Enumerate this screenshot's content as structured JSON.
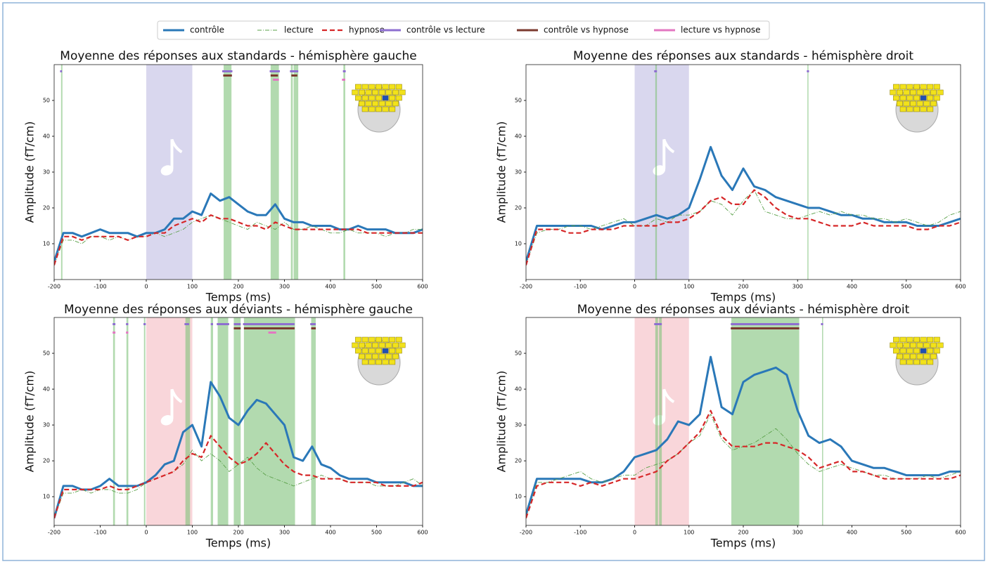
{
  "legend": [
    {
      "name": "contrôle",
      "color": "#2a78b8",
      "style": "solid"
    },
    {
      "name": "lecture",
      "color": "#5aa049",
      "style": "dashdot"
    },
    {
      "name": "hypnose",
      "color": "#d62728",
      "style": "dashed"
    },
    {
      "name": "contrôle vs lecture",
      "color": "#8e6fd0",
      "style": "bar"
    },
    {
      "name": "contrôle vs hypnose",
      "color": "#7b3a2f",
      "style": "bar"
    },
    {
      "name": "lecture vs hypnose",
      "color": "#e377c2",
      "style": "bar"
    }
  ],
  "chart_data": [
    {
      "type": "line",
      "title": "Moyenne des réponses aux standards - hémisphère gauche",
      "x_label": "Temps (ms)",
      "y_label": "Amplitude (fT/cm)",
      "xlim": [
        -200,
        600
      ],
      "ylim": [
        0,
        60
      ],
      "xticks": [
        -200,
        -100,
        0,
        100,
        200,
        300,
        400,
        500,
        600
      ],
      "yticks": [
        10,
        20,
        30,
        40,
        50
      ],
      "highlight": [
        0,
        100
      ],
      "highlight_color": "#d9d7ee",
      "x": [
        -200,
        -180,
        -160,
        -140,
        -120,
        -100,
        -80,
        -60,
        -40,
        -20,
        0,
        20,
        40,
        60,
        80,
        100,
        120,
        140,
        160,
        180,
        200,
        220,
        240,
        260,
        280,
        300,
        320,
        340,
        360,
        380,
        400,
        420,
        440,
        460,
        480,
        500,
        520,
        540,
        560,
        580,
        600
      ],
      "series": [
        {
          "name": "contrôle",
          "color": "#2a78b8",
          "values": [
            5,
            13,
            13,
            12,
            13,
            14,
            13,
            13,
            13,
            12,
            13,
            13,
            14,
            17,
            17,
            19,
            18,
            24,
            22,
            23,
            21,
            19,
            18,
            18,
            21,
            17,
            16,
            16,
            15,
            15,
            15,
            14,
            14,
            15,
            14,
            14,
            14,
            13,
            13,
            13,
            14
          ]
        },
        {
          "name": "lecture",
          "color": "#5aa049",
          "values": [
            4,
            11,
            11,
            10,
            12,
            12,
            11,
            12,
            11,
            12,
            12,
            13,
            12,
            13,
            14,
            16,
            17,
            18,
            17,
            16,
            15,
            14,
            16,
            15,
            14,
            16,
            14,
            14,
            15,
            14,
            13,
            13,
            14,
            13,
            13,
            13,
            12,
            13,
            13,
            14,
            14
          ]
        },
        {
          "name": "hypnose",
          "color": "#d62728",
          "values": [
            4,
            12,
            12,
            11,
            12,
            12,
            12,
            12,
            11,
            12,
            12,
            13,
            13,
            15,
            16,
            17,
            16,
            18,
            17,
            17,
            16,
            15,
            15,
            14,
            16,
            15,
            14,
            14,
            14,
            14,
            14,
            14,
            14,
            14,
            13,
            13,
            13,
            13,
            13,
            13,
            13
          ]
        }
      ],
      "significant_intervals": [
        [
          -185,
          -182
        ],
        [
          168,
          185
        ],
        [
          270,
          288
        ],
        [
          314,
          318
        ],
        [
          320,
          330
        ],
        [
          428,
          432
        ]
      ],
      "comparisons": [
        [
          [
            -187,
            -183
          ],
          [
            165,
            187
          ],
          [
            268,
            290
          ],
          [
            312,
            330
          ],
          [
            427,
            433
          ]
        ],
        [
          [
            167,
            186
          ],
          [
            270,
            286
          ],
          [
            315,
            328
          ]
        ],
        [
          [
            275,
            288
          ],
          [
            425,
            432
          ]
        ]
      ]
    },
    {
      "type": "line",
      "title": "Moyenne des réponses aux standards - hémisphère droit",
      "x_label": "Temps (ms)",
      "y_label": "Amplitude (fT/cm)",
      "xlim": [
        -200,
        600
      ],
      "ylim": [
        0,
        60
      ],
      "xticks": [
        -200,
        -100,
        0,
        100,
        200,
        300,
        400,
        500,
        600
      ],
      "yticks": [
        10,
        20,
        30,
        40,
        50
      ],
      "highlight": [
        0,
        100
      ],
      "highlight_color": "#d9d7ee",
      "x": [
        -200,
        -180,
        -160,
        -140,
        -120,
        -100,
        -80,
        -60,
        -40,
        -20,
        0,
        20,
        40,
        60,
        80,
        100,
        120,
        140,
        160,
        180,
        200,
        220,
        240,
        260,
        280,
        300,
        320,
        340,
        360,
        380,
        400,
        420,
        440,
        460,
        480,
        500,
        520,
        540,
        560,
        580,
        600
      ],
      "series": [
        {
          "name": "contrôle",
          "color": "#2a78b8",
          "values": [
            5,
            15,
            15,
            15,
            15,
            15,
            15,
            14,
            15,
            16,
            16,
            17,
            18,
            17,
            18,
            20,
            28,
            37,
            29,
            25,
            31,
            26,
            25,
            23,
            22,
            21,
            20,
            20,
            19,
            18,
            18,
            17,
            17,
            16,
            16,
            16,
            15,
            15,
            15,
            16,
            17
          ]
        },
        {
          "name": "lecture",
          "color": "#5aa049",
          "values": [
            4,
            13,
            14,
            14,
            15,
            15,
            14,
            15,
            16,
            17,
            15,
            15,
            17,
            16,
            18,
            18,
            19,
            22,
            21,
            18,
            22,
            25,
            19,
            18,
            17,
            17,
            18,
            19,
            18,
            19,
            18,
            18,
            17,
            17,
            16,
            17,
            16,
            15,
            16,
            18,
            19
          ]
        },
        {
          "name": "hypnose",
          "color": "#d62728",
          "values": [
            4,
            14,
            14,
            14,
            13,
            13,
            14,
            14,
            14,
            15,
            15,
            15,
            15,
            16,
            16,
            17,
            19,
            22,
            23,
            21,
            21,
            25,
            23,
            20,
            18,
            17,
            17,
            16,
            15,
            15,
            15,
            16,
            15,
            15,
            15,
            15,
            14,
            14,
            15,
            15,
            16
          ]
        }
      ],
      "significant_intervals": [
        [
          38,
          41
        ],
        [
          318,
          320
        ]
      ],
      "comparisons": [
        [
          [
            36,
            41
          ],
          [
            317,
            321
          ]
        ],
        [],
        []
      ]
    },
    {
      "type": "line",
      "title": "Moyenne des réponses aux déviants - hémisphère gauche",
      "x_label": "Temps (ms)",
      "y_label": "Amplitude (fT/cm)",
      "xlim": [
        -200,
        600
      ],
      "ylim": [
        2,
        60
      ],
      "xticks": [
        -200,
        -100,
        0,
        100,
        200,
        300,
        400,
        500,
        600
      ],
      "yticks": [
        10,
        20,
        30,
        40,
        50
      ],
      "highlight": [
        0,
        100
      ],
      "highlight_color": "#f9d6da",
      "x": [
        -200,
        -180,
        -160,
        -140,
        -120,
        -100,
        -80,
        -60,
        -40,
        -20,
        0,
        20,
        40,
        60,
        80,
        100,
        120,
        140,
        160,
        180,
        200,
        220,
        240,
        260,
        280,
        300,
        320,
        340,
        360,
        380,
        400,
        420,
        440,
        460,
        480,
        500,
        520,
        540,
        560,
        580,
        600
      ],
      "series": [
        {
          "name": "contrôle",
          "color": "#2a78b8",
          "values": [
            4,
            13,
            13,
            12,
            12,
            13,
            15,
            13,
            13,
            13,
            14,
            16,
            19,
            20,
            28,
            30,
            24,
            42,
            38,
            32,
            30,
            34,
            37,
            36,
            33,
            30,
            21,
            20,
            24,
            19,
            18,
            16,
            15,
            15,
            15,
            14,
            14,
            14,
            14,
            13,
            13
          ]
        },
        {
          "name": "lecture",
          "color": "#5aa049",
          "values": [
            4,
            11,
            11,
            12,
            11,
            12,
            12,
            11,
            11,
            12,
            14,
            15,
            16,
            17,
            19,
            23,
            20,
            22,
            20,
            17,
            19,
            21,
            18,
            16,
            15,
            14,
            13,
            14,
            15,
            16,
            15,
            15,
            14,
            14,
            14,
            13,
            13,
            13,
            14,
            15,
            13
          ]
        },
        {
          "name": "hypnose",
          "color": "#d62728",
          "values": [
            4,
            12,
            12,
            12,
            12,
            12,
            13,
            12,
            12,
            13,
            14,
            15,
            16,
            17,
            20,
            22,
            21,
            27,
            24,
            21,
            19,
            20,
            22,
            25,
            22,
            19,
            17,
            16,
            16,
            15,
            15,
            15,
            14,
            14,
            14,
            14,
            13,
            13,
            13,
            13,
            14
          ]
        }
      ],
      "significant_intervals": [
        [
          -72,
          -68
        ],
        [
          -43,
          -39
        ],
        [
          -5,
          -2
        ],
        [
          85,
          95
        ],
        [
          140,
          145
        ],
        [
          155,
          178
        ],
        [
          190,
          205
        ],
        [
          212,
          323
        ],
        [
          358,
          368
        ]
      ],
      "comparisons": [
        [
          [
            -73,
            -67
          ],
          [
            -44,
            -39
          ],
          [
            -6,
            -1
          ],
          [
            83,
            93
          ],
          [
            140,
            145
          ],
          [
            153,
            180
          ],
          [
            190,
            205
          ],
          [
            210,
            322
          ],
          [
            356,
            368
          ]
        ],
        [
          [
            190,
            205
          ],
          [
            212,
            322
          ],
          [
            358,
            368
          ]
        ],
        [
          [
            -73,
            -67
          ],
          [
            -44,
            -39
          ],
          [
            265,
            282
          ]
        ]
      ]
    },
    {
      "type": "line",
      "title": "Moyenne des réponses aux déviants - hémisphère droit",
      "x_label": "Temps (ms)",
      "y_label": "Amplitude (fT/cm)",
      "xlim": [
        -200,
        600
      ],
      "ylim": [
        2,
        60
      ],
      "xticks": [
        -200,
        -100,
        0,
        100,
        200,
        300,
        400,
        500,
        600
      ],
      "yticks": [
        10,
        20,
        30,
        40,
        50
      ],
      "highlight": [
        0,
        100
      ],
      "highlight_color": "#f9d6da",
      "x": [
        -200,
        -180,
        -160,
        -140,
        -120,
        -100,
        -80,
        -60,
        -40,
        -20,
        0,
        20,
        40,
        60,
        80,
        100,
        120,
        140,
        160,
        180,
        200,
        220,
        240,
        260,
        280,
        300,
        320,
        340,
        360,
        380,
        400,
        420,
        440,
        460,
        480,
        500,
        520,
        540,
        560,
        580,
        600
      ],
      "series": [
        {
          "name": "contrôle",
          "color": "#2a78b8",
          "values": [
            5,
            15,
            15,
            15,
            15,
            15,
            14,
            14,
            15,
            17,
            21,
            22,
            23,
            26,
            31,
            30,
            33,
            49,
            35,
            33,
            42,
            44,
            45,
            46,
            44,
            34,
            27,
            25,
            26,
            24,
            20,
            19,
            18,
            18,
            17,
            16,
            16,
            16,
            16,
            17,
            17
          ]
        },
        {
          "name": "lecture",
          "color": "#5aa049",
          "values": [
            4,
            14,
            14,
            15,
            16,
            17,
            15,
            14,
            15,
            16,
            16,
            18,
            19,
            20,
            22,
            25,
            27,
            33,
            26,
            23,
            24,
            25,
            27,
            29,
            26,
            22,
            19,
            17,
            18,
            19,
            18,
            17,
            16,
            16,
            15,
            15,
            15,
            16,
            15,
            16,
            17
          ]
        },
        {
          "name": "hypnose",
          "color": "#d62728",
          "values": [
            4,
            13,
            14,
            14,
            14,
            13,
            14,
            13,
            14,
            15,
            15,
            16,
            17,
            20,
            22,
            25,
            28,
            34,
            27,
            24,
            24,
            24,
            25,
            25,
            24,
            23,
            21,
            18,
            19,
            20,
            17,
            17,
            16,
            15,
            15,
            15,
            15,
            15,
            15,
            15,
            16
          ]
        }
      ],
      "significant_intervals": [
        [
          38,
          43
        ],
        [
          45,
          50
        ],
        [
          178,
          303
        ],
        [
          345,
          347
        ]
      ],
      "comparisons": [
        [
          [
            36,
            50
          ],
          [
            177,
            303
          ],
          [
            343,
            347
          ]
        ],
        [
          [
            177,
            303
          ]
        ],
        []
      ]
    }
  ]
}
